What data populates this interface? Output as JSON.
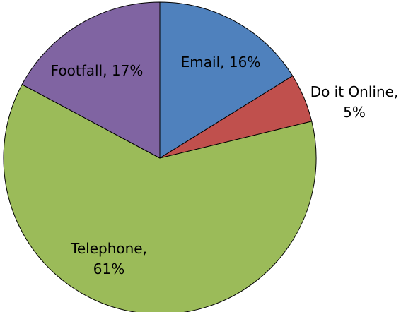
{
  "chart_data": {
    "type": "pie",
    "title": "",
    "start_angle_deg": 0,
    "direction": "clockwise",
    "slices": [
      {
        "category": "Email",
        "value": 16,
        "label_lines": [
          "Email, 16%"
        ],
        "color": "#4F81BD"
      },
      {
        "category": "Do it Online",
        "value": 5,
        "label_lines": [
          "Do it Online,",
          "5%"
        ],
        "color": "#C0504D"
      },
      {
        "category": "Telephone",
        "value": 61,
        "label_lines": [
          "Telephone,",
          "61%"
        ],
        "color": "#9BBB59"
      },
      {
        "category": "Footfall",
        "value": 17,
        "label_lines": [
          "Footfall, 17%"
        ],
        "color": "#8064A2"
      }
    ],
    "legend": "none"
  }
}
